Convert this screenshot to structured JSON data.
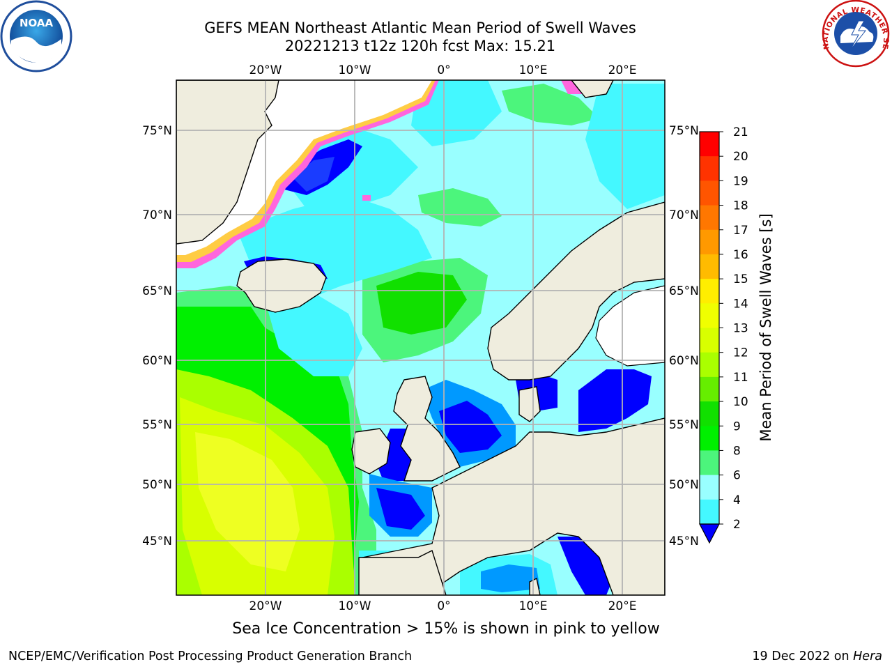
{
  "header": {
    "title_line1": "GEFS MEAN Northeast Atlantic Mean Period of Swell Waves",
    "title_line2": "20221213 t12z 120h fcst   Max: 15.21"
  },
  "map": {
    "lon_labels": [
      "20°W",
      "10°W",
      "0°",
      "10°E",
      "20°E"
    ],
    "lat_labels": [
      "75°N",
      "70°N",
      "65°N",
      "60°N",
      "55°N",
      "50°N",
      "45°N"
    ],
    "colors": {
      "land": "#efedde",
      "ice_white": "#ffffff",
      "grid": "#b3b3b3",
      "coast": "#000000"
    }
  },
  "colorbar": {
    "label": "Mean Period of Swell Waves [s]",
    "ticks": [
      "21",
      "20",
      "19",
      "18",
      "17",
      "16",
      "15",
      "14",
      "13",
      "12",
      "11",
      "10",
      "9",
      "8",
      "6",
      "4",
      "2"
    ],
    "colors": [
      "#ff0000",
      "#ff3300",
      "#ff5500",
      "#ff7700",
      "#ff9900",
      "#ffbb00",
      "#ffee00",
      "#f0ff00",
      "#d8ff00",
      "#aaff00",
      "#66ee00",
      "#11e000",
      "#00f000",
      "#4cf57c",
      "#99ffff",
      "#44f8ff",
      "#00eeff",
      "#0099ff",
      "#0000ff"
    ]
  },
  "caption": "Sea Ice Concentration > 15% is shown in pink to yellow",
  "footer": {
    "left": "NCEP/EMC/Verification Post Processing Product Generation Branch",
    "right_date": "19 Dec 2022 on ",
    "right_host": "Hera"
  },
  "logos": {
    "noaa": "NOAA",
    "nws_ring": "NATIONAL WEATHER SERVICE"
  }
}
